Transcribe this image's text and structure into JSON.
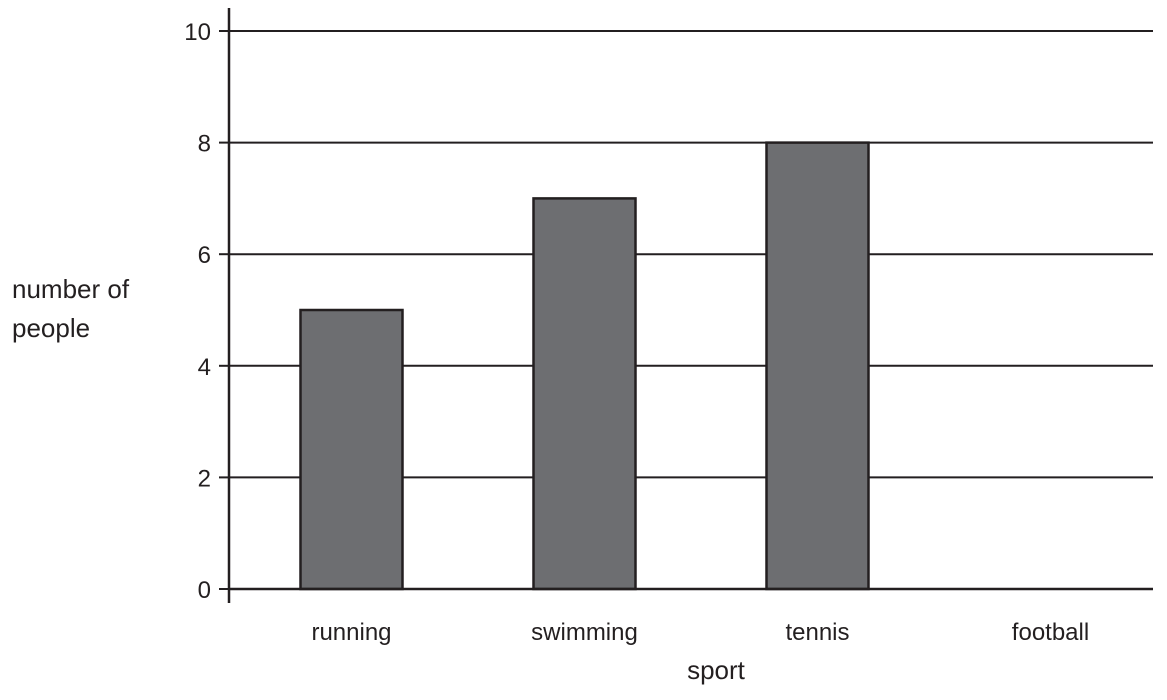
{
  "chart_data": {
    "type": "bar",
    "categories": [
      "running",
      "swimming",
      "tennis",
      "football"
    ],
    "values": [
      5,
      7,
      8,
      null
    ],
    "xlabel": "sport",
    "ylabel_lines": [
      "number of",
      "people"
    ],
    "ylim": [
      0,
      10
    ],
    "yticks": [
      0,
      2,
      4,
      6,
      8,
      10
    ],
    "grid": true,
    "bar_color": "#6d6e71",
    "line_color": "#231f20"
  }
}
